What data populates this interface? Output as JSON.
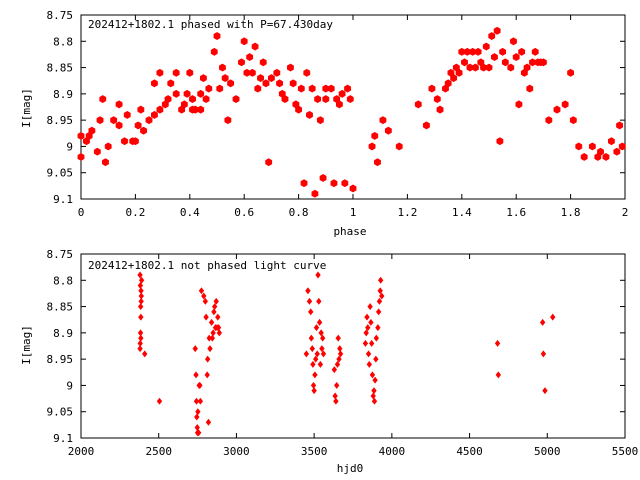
{
  "colors": {
    "points": "#ff0000",
    "axes": "#000000",
    "background": "#ffffff"
  },
  "chart_data": [
    {
      "type": "scatter",
      "title": "202412+1802.1 phased with P=67.430day",
      "xlabel": "phase",
      "ylabel": "I[mag]",
      "xlim": [
        0,
        2
      ],
      "ylim": [
        9.1,
        8.75
      ],
      "y_inverted": true,
      "grid": false,
      "marker": "filled hexagon",
      "x_ticks": [
        "0",
        "0.2",
        "0.4",
        "0.6",
        "0.8",
        "1",
        "1.2",
        "1.4",
        "1.6",
        "1.8",
        "2"
      ],
      "y_ticks": [
        "8.75",
        "8.8",
        "8.85",
        "8.9",
        "8.95",
        "9",
        "9.05",
        "9.1"
      ],
      "points": [
        [
          0.0,
          9.02
        ],
        [
          0.0,
          8.98
        ],
        [
          0.02,
          8.99
        ],
        [
          0.03,
          8.98
        ],
        [
          0.04,
          8.97
        ],
        [
          0.06,
          9.01
        ],
        [
          0.07,
          8.95
        ],
        [
          0.08,
          8.91
        ],
        [
          0.09,
          9.03
        ],
        [
          0.1,
          9.0
        ],
        [
          0.12,
          8.95
        ],
        [
          0.14,
          8.96
        ],
        [
          0.14,
          8.92
        ],
        [
          0.16,
          8.99
        ],
        [
          0.17,
          8.94
        ],
        [
          0.19,
          8.99
        ],
        [
          0.2,
          8.99
        ],
        [
          0.21,
          8.96
        ],
        [
          0.22,
          8.93
        ],
        [
          0.23,
          8.97
        ],
        [
          0.25,
          8.95
        ],
        [
          0.27,
          8.94
        ],
        [
          0.27,
          8.88
        ],
        [
          0.29,
          8.93
        ],
        [
          0.29,
          8.86
        ],
        [
          0.31,
          8.92
        ],
        [
          0.32,
          8.91
        ],
        [
          0.33,
          8.88
        ],
        [
          0.35,
          8.9
        ],
        [
          0.35,
          8.86
        ],
        [
          0.37,
          8.93
        ],
        [
          0.38,
          8.92
        ],
        [
          0.39,
          8.9
        ],
        [
          0.4,
          8.86
        ],
        [
          0.41,
          8.91
        ],
        [
          0.41,
          8.93
        ],
        [
          0.42,
          8.93
        ],
        [
          0.44,
          8.9
        ],
        [
          0.44,
          8.93
        ],
        [
          0.45,
          8.87
        ],
        [
          0.46,
          8.91
        ],
        [
          0.47,
          8.89
        ],
        [
          0.49,
          8.82
        ],
        [
          0.5,
          8.79
        ],
        [
          0.51,
          8.89
        ],
        [
          0.52,
          8.85
        ],
        [
          0.53,
          8.87
        ],
        [
          0.54,
          8.95
        ],
        [
          0.55,
          8.88
        ],
        [
          0.57,
          8.91
        ],
        [
          0.59,
          8.84
        ],
        [
          0.6,
          8.8
        ],
        [
          0.61,
          8.86
        ],
        [
          0.62,
          8.83
        ],
        [
          0.63,
          8.86
        ],
        [
          0.64,
          8.81
        ],
        [
          0.65,
          8.89
        ],
        [
          0.66,
          8.87
        ],
        [
          0.67,
          8.84
        ],
        [
          0.68,
          8.88
        ],
        [
          0.69,
          9.03
        ],
        [
          0.7,
          8.87
        ],
        [
          0.72,
          8.86
        ],
        [
          0.73,
          8.88
        ],
        [
          0.74,
          8.9
        ],
        [
          0.75,
          8.91
        ],
        [
          0.77,
          8.85
        ],
        [
          0.78,
          8.88
        ],
        [
          0.79,
          8.92
        ],
        [
          0.8,
          8.93
        ],
        [
          0.81,
          8.89
        ],
        [
          0.82,
          9.07
        ],
        [
          0.83,
          8.86
        ],
        [
          0.84,
          8.94
        ],
        [
          0.85,
          8.89
        ],
        [
          0.86,
          9.09
        ],
        [
          0.87,
          8.91
        ],
        [
          0.88,
          8.95
        ],
        [
          0.89,
          9.06
        ],
        [
          0.9,
          8.89
        ],
        [
          0.9,
          8.91
        ],
        [
          0.92,
          8.89
        ],
        [
          0.93,
          9.07
        ],
        [
          0.94,
          8.91
        ],
        [
          0.95,
          8.92
        ],
        [
          0.96,
          8.9
        ],
        [
          0.97,
          9.07
        ],
        [
          0.98,
          8.89
        ],
        [
          0.99,
          8.91
        ],
        [
          1.0,
          9.08
        ],
        [
          1.07,
          9.0
        ],
        [
          1.08,
          8.98
        ],
        [
          1.09,
          9.03
        ],
        [
          1.11,
          8.95
        ],
        [
          1.13,
          8.97
        ],
        [
          1.17,
          9.0
        ],
        [
          1.24,
          8.92
        ],
        [
          1.27,
          8.96
        ],
        [
          1.29,
          8.89
        ],
        [
          1.31,
          8.91
        ],
        [
          1.32,
          8.93
        ],
        [
          1.34,
          8.89
        ],
        [
          1.35,
          8.88
        ],
        [
          1.36,
          8.86
        ],
        [
          1.37,
          8.87
        ],
        [
          1.38,
          8.85
        ],
        [
          1.39,
          8.86
        ],
        [
          1.4,
          8.82
        ],
        [
          1.41,
          8.84
        ],
        [
          1.42,
          8.82
        ],
        [
          1.43,
          8.85
        ],
        [
          1.44,
          8.82
        ],
        [
          1.45,
          8.85
        ],
        [
          1.46,
          8.82
        ],
        [
          1.47,
          8.84
        ],
        [
          1.48,
          8.85
        ],
        [
          1.49,
          8.81
        ],
        [
          1.5,
          8.85
        ],
        [
          1.51,
          8.79
        ],
        [
          1.52,
          8.83
        ],
        [
          1.53,
          8.78
        ],
        [
          1.54,
          8.99
        ],
        [
          1.55,
          8.82
        ],
        [
          1.56,
          8.84
        ],
        [
          1.58,
          8.85
        ],
        [
          1.59,
          8.8
        ],
        [
          1.6,
          8.83
        ],
        [
          1.61,
          8.92
        ],
        [
          1.62,
          8.82
        ],
        [
          1.63,
          8.86
        ],
        [
          1.64,
          8.85
        ],
        [
          1.65,
          8.89
        ],
        [
          1.66,
          8.84
        ],
        [
          1.67,
          8.82
        ],
        [
          1.68,
          8.84
        ],
        [
          1.69,
          8.84
        ],
        [
          1.7,
          8.84
        ],
        [
          1.72,
          8.95
        ],
        [
          1.75,
          8.93
        ],
        [
          1.78,
          8.92
        ],
        [
          1.8,
          8.86
        ],
        [
          1.81,
          8.95
        ],
        [
          1.83,
          9.0
        ],
        [
          1.85,
          9.02
        ],
        [
          1.88,
          9.0
        ],
        [
          1.9,
          9.02
        ],
        [
          1.91,
          9.01
        ],
        [
          1.93,
          9.02
        ],
        [
          1.95,
          8.99
        ],
        [
          1.97,
          9.01
        ],
        [
          1.98,
          8.96
        ],
        [
          1.99,
          9.0
        ]
      ]
    },
    {
      "type": "scatter",
      "title": "202412+1802.1 not phased light curve",
      "xlabel": "hjd0",
      "ylabel": "I[mag]",
      "xlim": [
        2000,
        5500
      ],
      "ylim": [
        9.1,
        8.75
      ],
      "y_inverted": true,
      "grid": false,
      "marker": "small filled diamond",
      "x_ticks": [
        "2000",
        "2500",
        "3000",
        "3500",
        "4000",
        "4500",
        "5000",
        "5500"
      ],
      "y_ticks": [
        "8.75",
        "8.8",
        "8.85",
        "8.9",
        "8.95",
        "9",
        "9.05",
        "9.1"
      ],
      "points": [
        [
          2380,
          8.79
        ],
        [
          2382,
          8.81
        ],
        [
          2384,
          8.85
        ],
        [
          2385,
          8.87
        ],
        [
          2386,
          8.82
        ],
        [
          2387,
          8.84
        ],
        [
          2383,
          8.9
        ],
        [
          2381,
          8.92
        ],
        [
          2380,
          8.93
        ],
        [
          2385,
          8.91
        ],
        [
          2388,
          8.83
        ],
        [
          2390,
          8.8
        ],
        [
          2410,
          8.94
        ],
        [
          2505,
          9.03
        ],
        [
          2735,
          8.93
        ],
        [
          2740,
          8.98
        ],
        [
          2743,
          9.03
        ],
        [
          2745,
          9.06
        ],
        [
          2748,
          9.08
        ],
        [
          2750,
          9.09
        ],
        [
          2752,
          9.05
        ],
        [
          2757,
          9.09
        ],
        [
          2760,
          9.0
        ],
        [
          2765,
          9.0
        ],
        [
          2768,
          9.03
        ],
        [
          2775,
          8.82
        ],
        [
          2790,
          8.83
        ],
        [
          2800,
          8.84
        ],
        [
          2805,
          8.87
        ],
        [
          2812,
          8.98
        ],
        [
          2815,
          8.95
        ],
        [
          2820,
          9.07
        ],
        [
          2825,
          8.91
        ],
        [
          2830,
          8.93
        ],
        [
          2840,
          8.88
        ],
        [
          2845,
          8.91
        ],
        [
          2850,
          8.9
        ],
        [
          2855,
          8.86
        ],
        [
          2860,
          8.85
        ],
        [
          2865,
          8.89
        ],
        [
          2870,
          8.84
        ],
        [
          2875,
          8.89
        ],
        [
          2880,
          8.87
        ],
        [
          2885,
          8.89
        ],
        [
          2890,
          8.9
        ],
        [
          3450,
          8.94
        ],
        [
          3460,
          8.82
        ],
        [
          3470,
          8.84
        ],
        [
          3478,
          8.86
        ],
        [
          3482,
          8.91
        ],
        [
          3488,
          8.93
        ],
        [
          3492,
          8.96
        ],
        [
          3496,
          9.0
        ],
        [
          3500,
          9.01
        ],
        [
          3505,
          8.98
        ],
        [
          3510,
          8.95
        ],
        [
          3515,
          8.89
        ],
        [
          3520,
          8.94
        ],
        [
          3525,
          8.79
        ],
        [
          3530,
          8.84
        ],
        [
          3535,
          8.88
        ],
        [
          3540,
          8.96
        ],
        [
          3545,
          8.9
        ],
        [
          3550,
          8.93
        ],
        [
          3555,
          8.91
        ],
        [
          3560,
          8.94
        ],
        [
          3630,
          8.97
        ],
        [
          3635,
          9.02
        ],
        [
          3640,
          9.03
        ],
        [
          3645,
          9.0
        ],
        [
          3650,
          8.96
        ],
        [
          3655,
          8.91
        ],
        [
          3660,
          8.95
        ],
        [
          3665,
          8.93
        ],
        [
          3670,
          8.94
        ],
        [
          3830,
          8.92
        ],
        [
          3835,
          8.9
        ],
        [
          3840,
          8.87
        ],
        [
          3845,
          8.89
        ],
        [
          3850,
          8.94
        ],
        [
          3855,
          8.96
        ],
        [
          3860,
          8.85
        ],
        [
          3865,
          8.88
        ],
        [
          3870,
          8.92
        ],
        [
          3875,
          8.98
        ],
        [
          3880,
          9.02
        ],
        [
          3885,
          9.01
        ],
        [
          3888,
          9.03
        ],
        [
          3892,
          8.99
        ],
        [
          3897,
          8.95
        ],
        [
          3900,
          8.91
        ],
        [
          3910,
          8.89
        ],
        [
          3915,
          8.86
        ],
        [
          3920,
          8.84
        ],
        [
          3925,
          8.82
        ],
        [
          3928,
          8.8
        ],
        [
          3935,
          8.83
        ],
        [
          4680,
          8.92
        ],
        [
          4685,
          8.98
        ],
        [
          4970,
          8.88
        ],
        [
          4975,
          8.94
        ],
        [
          4985,
          9.01
        ],
        [
          5035,
          8.87
        ]
      ]
    }
  ]
}
